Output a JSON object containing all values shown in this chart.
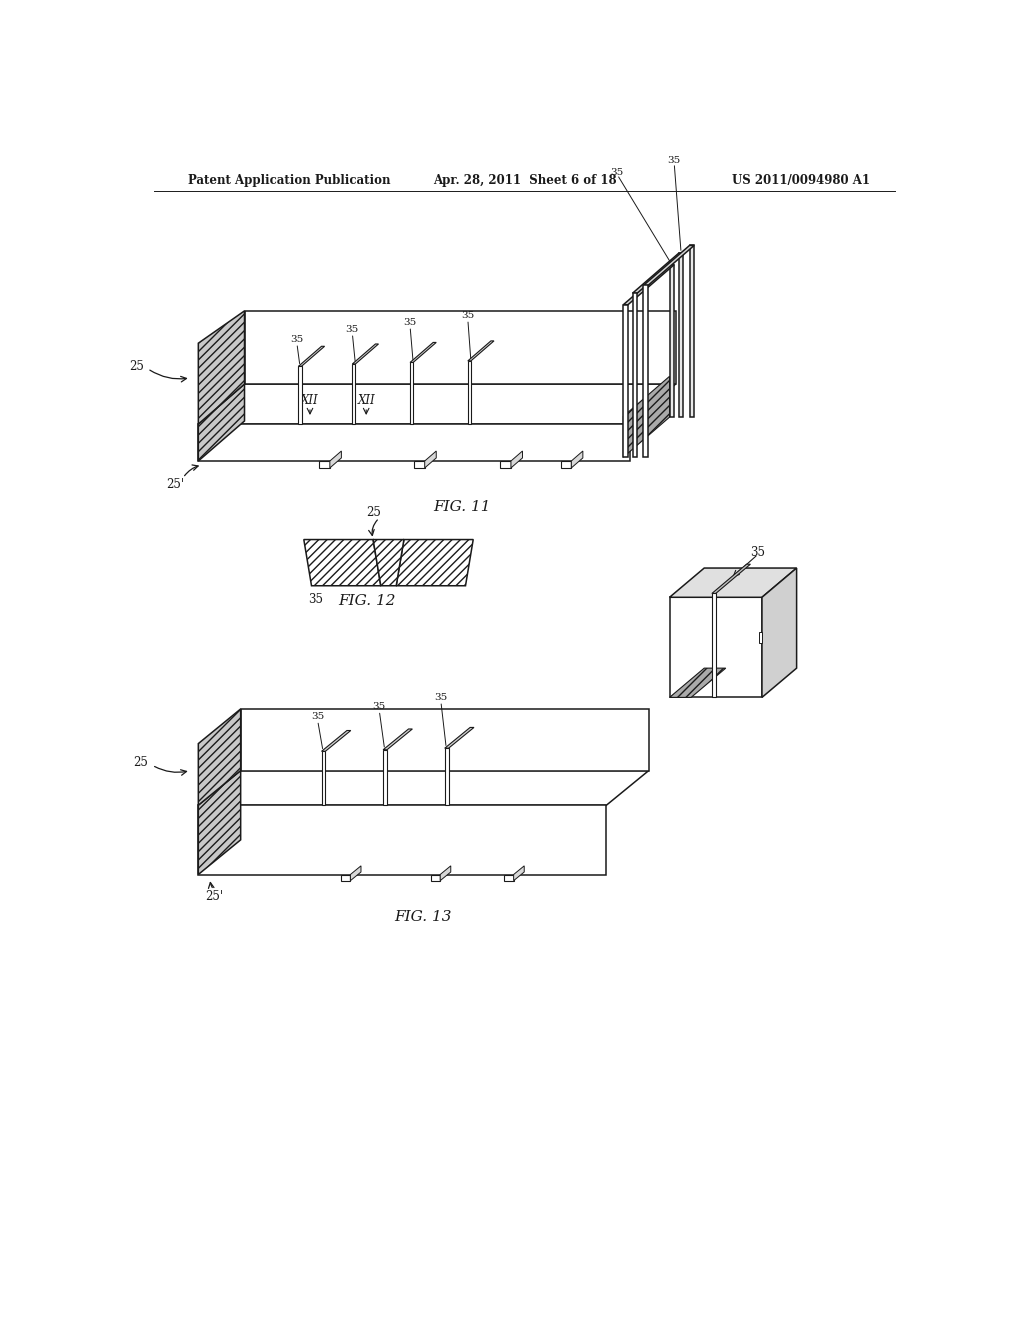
{
  "bg_color": "#ffffff",
  "header_left": "Patent Application Publication",
  "header_mid": "Apr. 28, 2011  Sheet 6 of 18",
  "header_right": "US 2011/0094980 A1",
  "fig11_label": "FIG. 11",
  "fig12_label": "FIG. 12",
  "fig13_label": "FIG. 13",
  "line_color": "#1a1a1a",
  "lw": 1.1
}
